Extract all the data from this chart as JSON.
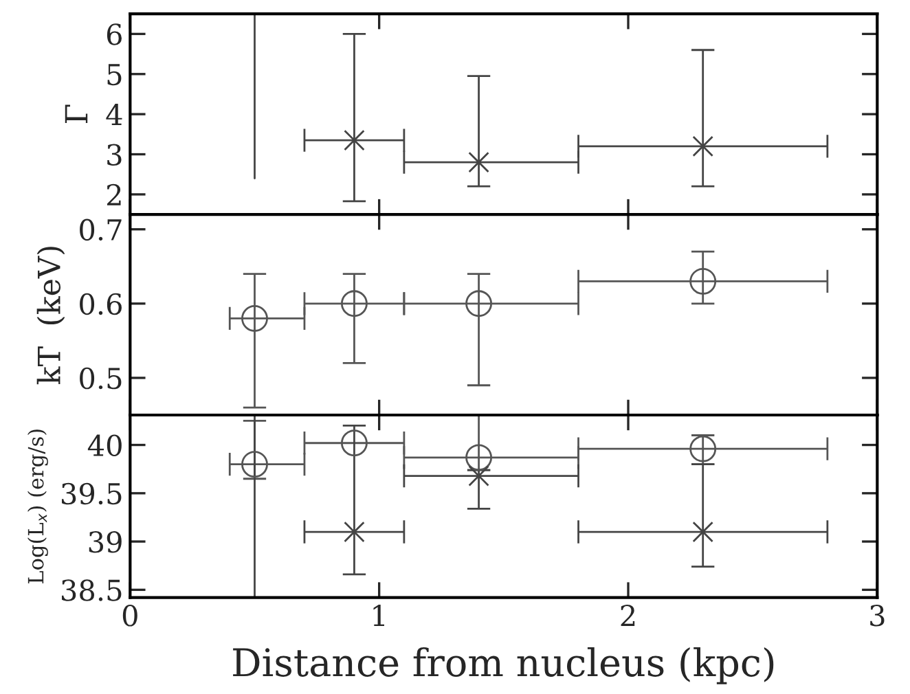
{
  "chart_data": [
    {
      "type": "scatter",
      "ylabel": "Γ",
      "xlim": [
        0,
        3
      ],
      "xticks": [
        0,
        1,
        2,
        3
      ],
      "ylim": [
        1.5,
        6.5
      ],
      "yticks": [
        2,
        3,
        4,
        5,
        6
      ],
      "tick_labels": "y",
      "grid": false,
      "legend": false,
      "series": [
        {
          "type": "scatter",
          "marker": "cross",
          "color": "#444444",
          "x": [
            0.9,
            1.4,
            2.3
          ],
          "values": [
            3.35,
            2.8,
            3.2
          ],
          "errors": [
            [
              1.83,
              6.0
            ],
            [
              2.2,
              4.95
            ],
            [
              2.2,
              5.6
            ]
          ],
          "xerrors": [
            [
              0.7,
              1.1
            ],
            [
              1.1,
              1.8
            ],
            [
              1.8,
              2.8
            ]
          ]
        },
        {
          "type": "line",
          "marker": "none",
          "color": "#444444",
          "x": [
            0.5,
            0.5
          ],
          "values": [
            2.4,
            6.5
          ]
        }
      ]
    },
    {
      "type": "scatter",
      "ylabel": "kT  (keV)",
      "xlim": [
        0,
        3
      ],
      "xticks": [
        0,
        1,
        2,
        3
      ],
      "ylim": [
        0.45,
        0.72
      ],
      "yticks": [
        0.5,
        0.6,
        0.7
      ],
      "tick_labels": "y",
      "grid": false,
      "legend": false,
      "series": [
        {
          "type": "scatter",
          "marker": "circle",
          "color": "#555555",
          "x": [
            0.5,
            0.9,
            1.4,
            2.3
          ],
          "values": [
            0.58,
            0.6,
            0.6,
            0.63
          ],
          "errors": [
            [
              0.46,
              0.64
            ],
            [
              0.52,
              0.64
            ],
            [
              0.49,
              0.64
            ],
            [
              0.6,
              0.67
            ]
          ],
          "xerrors": [
            [
              0.4,
              0.7
            ],
            [
              0.7,
              1.1
            ],
            [
              1.1,
              1.8
            ],
            [
              1.8,
              2.8
            ]
          ]
        }
      ]
    },
    {
      "type": "scatter",
      "ylabel": "Log(L$_{x}$) (erg/s)",
      "xlabel": "Distance from nucleus (kpc)",
      "xlim": [
        0,
        3
      ],
      "xticks": [
        0,
        1,
        2,
        3
      ],
      "ylim": [
        38.42,
        40.31
      ],
      "yticks": [
        38.5,
        39,
        39.5,
        40
      ],
      "grid": false,
      "legend": false,
      "series": [
        {
          "type": "scatter",
          "marker": "circle",
          "color": "#555555",
          "x": [
            0.5,
            0.9,
            1.4,
            2.3
          ],
          "values": [
            39.8,
            40.02,
            39.87,
            39.96
          ],
          "errors": [
            [
              39.65,
              40.25
            ],
            null,
            [
              39.74,
              40.31
            ],
            [
              39.8,
              40.1
            ]
          ],
          "xerrors": [
            [
              0.4,
              0.7
            ],
            [
              0.7,
              1.1
            ],
            [
              1.1,
              1.8
            ],
            [
              1.8,
              2.8
            ]
          ]
        },
        {
          "type": "scatter",
          "marker": "cross",
          "color": "#444444",
          "x": [
            0.9,
            1.4,
            2.3
          ],
          "values": [
            39.1,
            39.68,
            39.1
          ],
          "errors": [
            [
              38.66,
              40.2
            ],
            [
              39.34,
              39.74
            ],
            [
              38.74,
              39.8
            ]
          ],
          "xerrors": [
            [
              0.7,
              1.1
            ],
            [
              1.1,
              1.8
            ],
            [
              1.8,
              2.8
            ]
          ]
        },
        {
          "type": "line",
          "marker": "none",
          "color": "#444444",
          "x": [
            0.5,
            0.5
          ],
          "values": [
            38.42,
            40.31
          ]
        }
      ]
    }
  ]
}
